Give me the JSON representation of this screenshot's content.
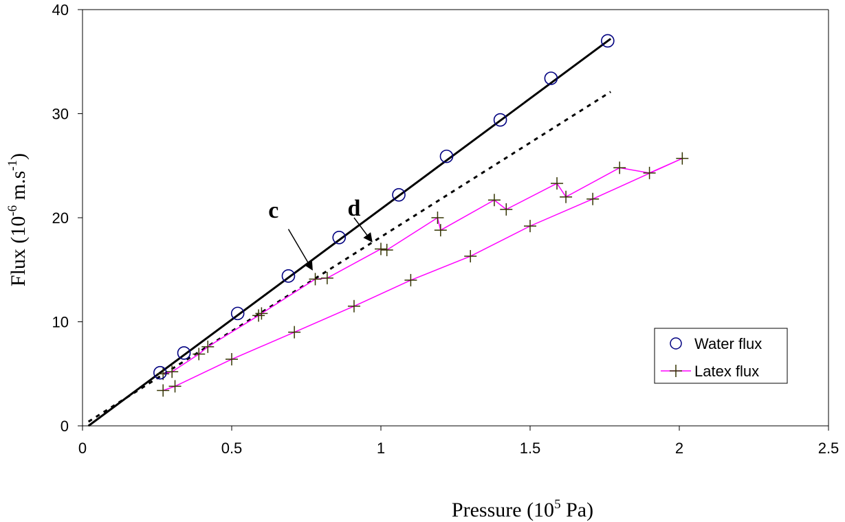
{
  "chart_data": {
    "type": "scatter",
    "xlabel": {
      "main": "Pressure (10",
      "sup": "5",
      "rest": " Pa)"
    },
    "ylabel": {
      "main": "Flux (10",
      "sup": "-6",
      "mid": " m.s",
      "sup2": "-1",
      "rest": ")"
    },
    "xlim": [
      0,
      2.5
    ],
    "ylim": [
      0,
      40
    ],
    "x_ticks": [
      "0",
      "0.5",
      "1",
      "1.5",
      "2",
      "2.5"
    ],
    "x_tick_values": [
      0,
      0.5,
      1,
      1.5,
      2,
      2.5
    ],
    "y_ticks": [
      "0",
      "10",
      "20",
      "30",
      "40"
    ],
    "y_tick_values": [
      0,
      10,
      20,
      30,
      40
    ],
    "grid": false,
    "legend_position": "bottom-right",
    "series": [
      {
        "name": "Water flux",
        "marker": "circle",
        "color": "#000080",
        "x": [
          0.26,
          0.34,
          0.52,
          0.69,
          0.86,
          1.06,
          1.22,
          1.4,
          1.57,
          1.76
        ],
        "y": [
          5.1,
          7.0,
          10.8,
          14.4,
          18.1,
          22.2,
          25.9,
          29.4,
          33.4,
          37.0
        ]
      },
      {
        "name": "Latex flux",
        "marker": "plus",
        "color": "#ff00ff",
        "marker_color": "#333300",
        "x": [
          0.27,
          0.3,
          0.39,
          0.42,
          0.59,
          0.6,
          0.78,
          0.82,
          1.0,
          1.02,
          1.19,
          1.2,
          1.38,
          1.42,
          1.59,
          1.62,
          1.8,
          1.9,
          2.01,
          1.71,
          1.5,
          1.3,
          1.1,
          0.91,
          0.71,
          0.5,
          0.31,
          0.27
        ],
        "y": [
          5.0,
          5.2,
          6.9,
          7.6,
          10.6,
          10.8,
          14.1,
          14.2,
          17.0,
          16.9,
          20.0,
          18.8,
          21.7,
          20.8,
          23.3,
          22.0,
          24.8,
          24.3,
          25.7,
          21.8,
          19.2,
          16.3,
          14.0,
          11.5,
          9.0,
          6.4,
          3.8,
          3.4
        ]
      }
    ],
    "fit_lines": [
      {
        "name": "water fit",
        "style": "solid",
        "color": "#000000",
        "x": [
          0.02,
          1.77
        ],
        "y": [
          0,
          37.2
        ]
      },
      {
        "name": "latex initial fit",
        "style": "dotted",
        "color": "#000000",
        "x": [
          0.02,
          1.77
        ],
        "y": [
          0.4,
          32.1
        ]
      }
    ],
    "annotations": [
      {
        "label": "c",
        "text_at": [
          0.64,
          20.0
        ],
        "arrow_from": [
          0.69,
          18.9
        ],
        "arrow_to": [
          0.77,
          15.0
        ]
      },
      {
        "label": "d",
        "text_at": [
          0.91,
          20.2
        ],
        "arrow_from": [
          0.91,
          20.0
        ],
        "arrow_to": [
          0.97,
          17.7
        ]
      }
    ],
    "colors": {
      "axis": "#000000",
      "water": "#000080",
      "latex_line": "#ff00ff",
      "latex_marker": "#333300"
    }
  }
}
